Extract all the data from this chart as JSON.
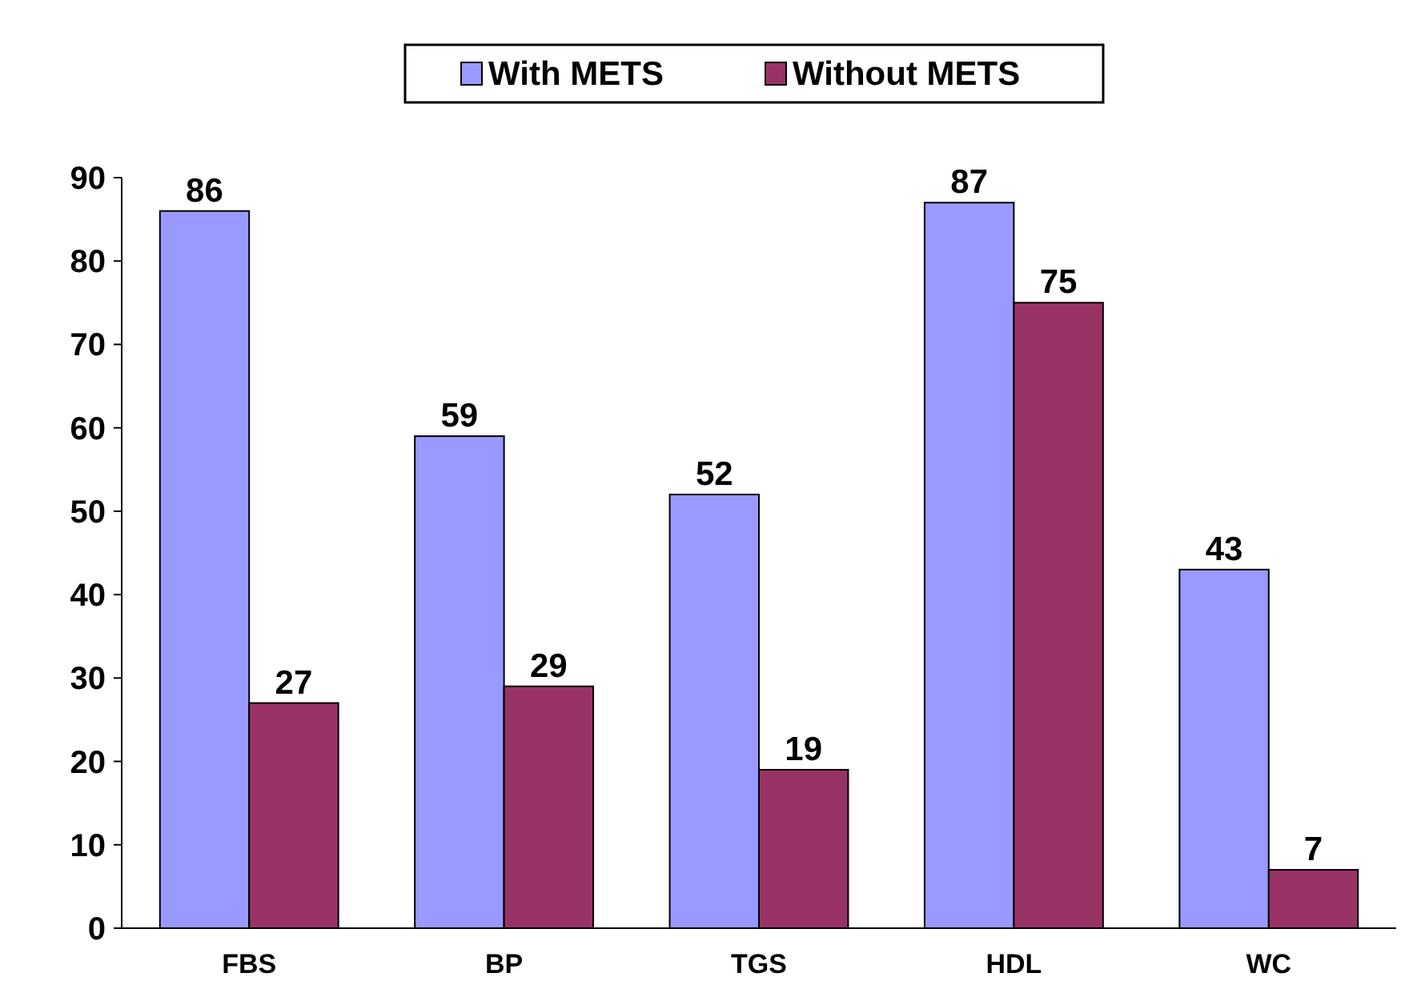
{
  "chart_data": {
    "type": "bar",
    "categories": [
      "FBS",
      "BP",
      "TGS",
      "HDL",
      "WC"
    ],
    "series": [
      {
        "name": "With METS",
        "color": "#9999ff",
        "values": [
          86,
          59,
          52,
          87,
          43
        ]
      },
      {
        "name": "Without METS",
        "color": "#993366",
        "values": [
          27,
          29,
          19,
          75,
          7
        ]
      }
    ],
    "ylim": [
      0,
      90
    ],
    "yticks": [
      0,
      10,
      20,
      30,
      40,
      50,
      60,
      70,
      80,
      90
    ],
    "data_labels": true,
    "legend": "top",
    "grid": false
  }
}
